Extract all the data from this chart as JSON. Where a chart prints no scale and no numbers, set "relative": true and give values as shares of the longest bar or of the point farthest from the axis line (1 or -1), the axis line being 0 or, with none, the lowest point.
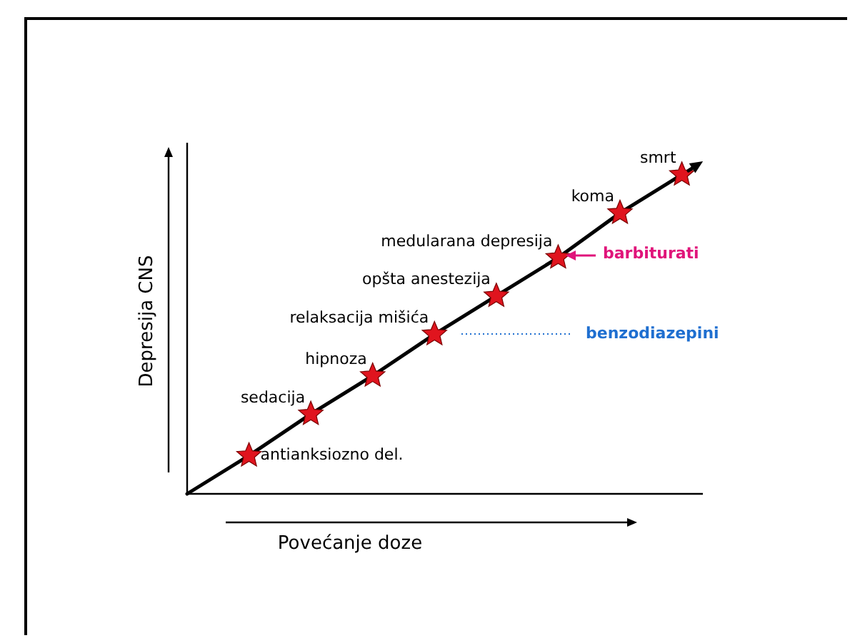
{
  "chart_data": {
    "type": "line",
    "relative": true,
    "xlabel": "Povećanje doze",
    "ylabel": "Depresija CNS",
    "legend": false,
    "marker": "star",
    "categories": [
      null,
      null,
      null,
      null,
      null,
      null,
      null,
      null
    ],
    "series": [
      {
        "color": "#000000",
        "colors": [
          "#e0141e",
          "#e0141e",
          "#e0141e",
          "#e0141e",
          "#e0141e",
          "#e0141e",
          "#e0141e",
          "#e0141e"
        ],
        "values": [
          0.12,
          0.25,
          0.37,
          0.5,
          0.62,
          0.74,
          0.88,
          1
        ]
      }
    ],
    "annotations": [
      "antianksiozno del.",
      "sedacija",
      "hipnoza",
      "relaksacija mišića",
      "opšta anestezija",
      "medularana depresija",
      "koma",
      "smrt",
      "benzodiazepini",
      "barbiturati"
    ]
  }
}
